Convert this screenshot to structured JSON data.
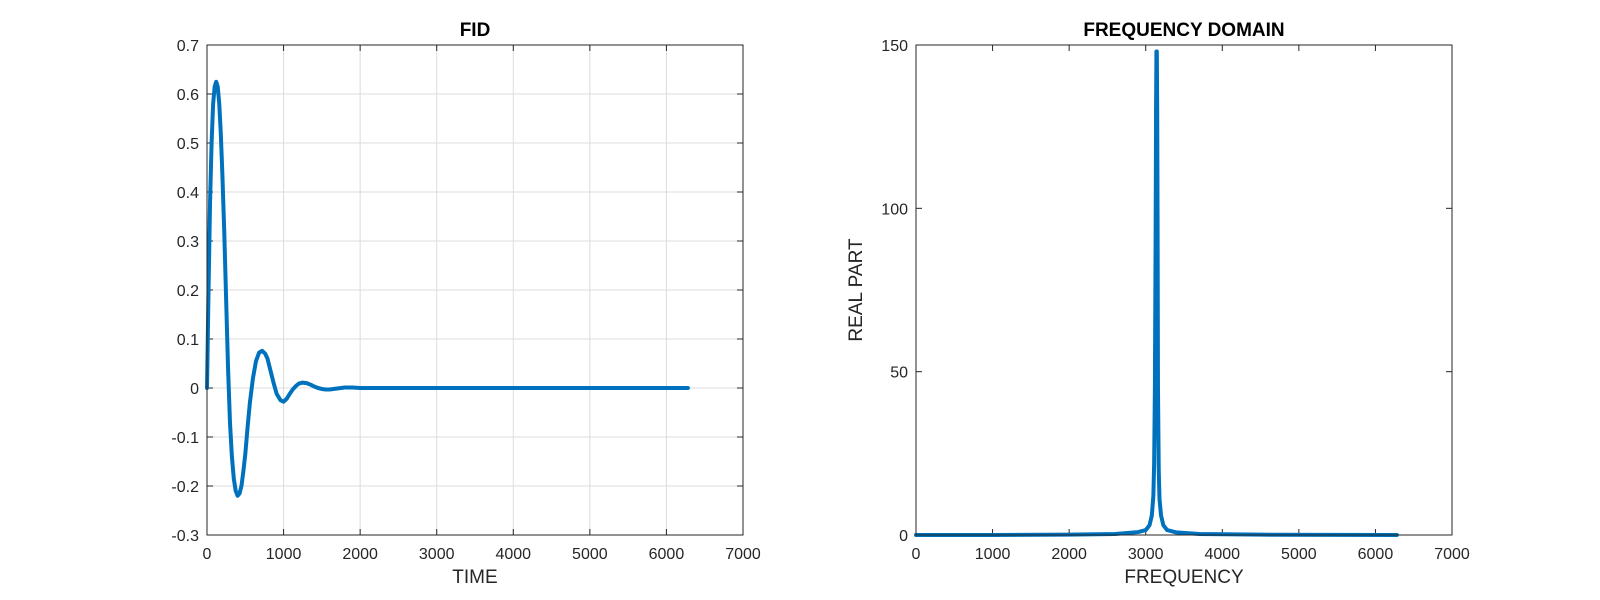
{
  "chart_data": [
    {
      "type": "line",
      "title": "FID",
      "xlabel": "TIME",
      "ylabel": "",
      "xlim": [
        0,
        7000
      ],
      "ylim": [
        -0.3,
        0.7
      ],
      "xticks": [
        0,
        1000,
        2000,
        3000,
        4000,
        5000,
        6000,
        7000
      ],
      "yticks": [
        -0.3,
        -0.2,
        -0.1,
        0,
        0.1,
        0.2,
        0.3,
        0.4,
        0.5,
        0.6,
        0.7
      ],
      "grid": true,
      "color": "#0072BD",
      "series": [
        {
          "x": [
            0,
            20,
            40,
            60,
            80,
            100,
            120,
            140,
            160,
            180,
            200,
            225,
            250,
            275,
            300,
            325,
            350,
            375,
            400,
            425,
            450,
            475,
            500,
            530,
            560,
            600,
            640,
            680,
            720,
            760,
            790,
            830,
            870,
            910,
            960,
            1000,
            1040,
            1080,
            1120,
            1160,
            1200,
            1250,
            1300,
            1350,
            1400,
            1450,
            1500,
            1550,
            1600,
            1650,
            1700,
            1750,
            1800,
            1850,
            1900,
            2000,
            2100,
            2200,
            2300,
            2400,
            2600,
            2800,
            3000,
            3500,
            4000,
            4500,
            5000,
            5500,
            6000,
            6280
          ],
          "y": [
            0,
            0.2,
            0.38,
            0.5,
            0.58,
            0.615,
            0.625,
            0.615,
            0.58,
            0.52,
            0.44,
            0.32,
            0.18,
            0.04,
            -0.07,
            -0.14,
            -0.185,
            -0.21,
            -0.22,
            -0.215,
            -0.2,
            -0.17,
            -0.135,
            -0.08,
            -0.03,
            0.02,
            0.055,
            0.072,
            0.076,
            0.07,
            0.06,
            0.035,
            0.01,
            -0.012,
            -0.025,
            -0.028,
            -0.022,
            -0.012,
            -0.003,
            0.004,
            0.009,
            0.011,
            0.01,
            0.007,
            0.003,
            0.0,
            -0.002,
            -0.003,
            -0.003,
            -0.002,
            -0.001,
            0.0,
            0.001,
            0.001,
            0.001,
            0.0,
            0.0,
            0.0,
            0.0,
            0.0,
            0.0,
            0.0,
            0.0,
            0.0,
            0.0,
            0.0,
            0.0,
            0.0,
            0.0,
            0.0
          ]
        }
      ]
    },
    {
      "type": "line",
      "title": "FREQUENCY DOMAIN",
      "xlabel": "FREQUENCY",
      "ylabel": "REAL PART",
      "xlim": [
        0,
        7000
      ],
      "ylim": [
        0,
        150
      ],
      "xticks": [
        0,
        1000,
        2000,
        3000,
        4000,
        5000,
        6000,
        7000
      ],
      "yticks": [
        0,
        50,
        100,
        150
      ],
      "grid": false,
      "color": "#0072BD",
      "series": [
        {
          "x": [
            0,
            1000,
            2000,
            2600,
            2900,
            3000,
            3050,
            3080,
            3100,
            3110,
            3120,
            3130,
            3135,
            3140,
            3145,
            3150,
            3155,
            3160,
            3170,
            3180,
            3200,
            3230,
            3280,
            3400,
            3700,
            4500,
            6280
          ],
          "y": [
            0,
            0,
            0.1,
            0.3,
            0.9,
            1.5,
            3,
            6,
            12,
            22,
            45,
            95,
            130,
            148,
            148,
            130,
            95,
            45,
            20,
            11,
            6,
            3,
            1.5,
            0.8,
            0.3,
            0.1,
            0
          ]
        }
      ]
    }
  ]
}
